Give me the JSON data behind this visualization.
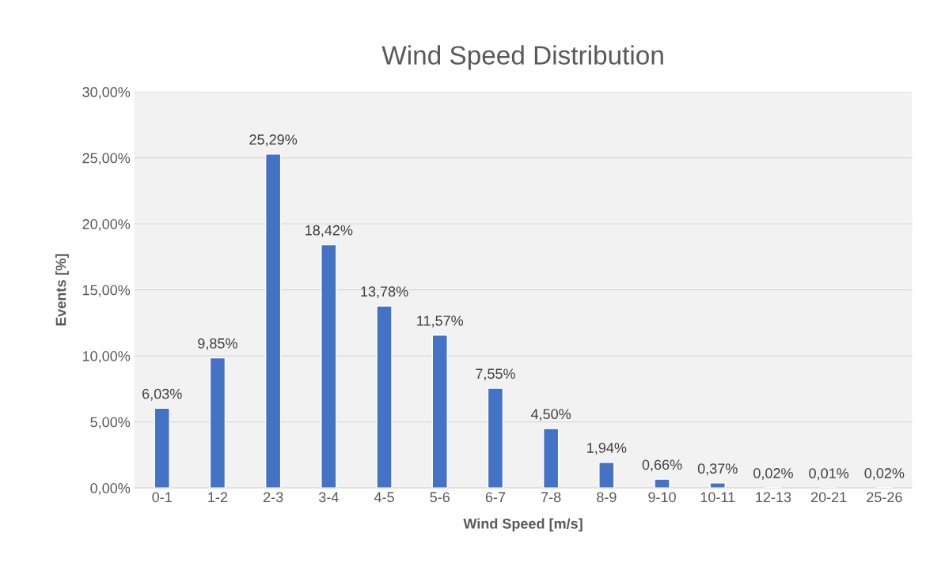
{
  "chart_data": {
    "type": "bar",
    "title": "Wind Speed Distribution",
    "xlabel": "Wind Speed [m/s]",
    "ylabel": "Events [%]",
    "categories": [
      "0-1",
      "1-2",
      "2-3",
      "3-4",
      "4-5",
      "5-6",
      "6-7",
      "7-8",
      "8-9",
      "9-10",
      "10-11",
      "12-13",
      "20-21",
      "25-26"
    ],
    "values": [
      6.03,
      9.85,
      25.29,
      18.42,
      13.78,
      11.57,
      7.55,
      4.5,
      1.94,
      0.66,
      0.37,
      0.02,
      0.01,
      0.02
    ],
    "value_labels": [
      "6,03%",
      "9,85%",
      "25,29%",
      "18,42%",
      "13,78%",
      "11,57%",
      "7,55%",
      "4,50%",
      "1,94%",
      "0,66%",
      "0,37%",
      "0,02%",
      "0,01%",
      "0,02%"
    ],
    "color": "#4472c4",
    "ylim": [
      0,
      30
    ],
    "yticks": [
      {
        "value": 0,
        "label": "0,00%"
      },
      {
        "value": 5,
        "label": "5,00%"
      },
      {
        "value": 10,
        "label": "10,00%"
      },
      {
        "value": 15,
        "label": "15,00%"
      },
      {
        "value": 20,
        "label": "20,00%"
      },
      {
        "value": 25,
        "label": "25,00%"
      },
      {
        "value": 30,
        "label": "30,00%"
      }
    ],
    "grid": "y",
    "legend": false
  }
}
